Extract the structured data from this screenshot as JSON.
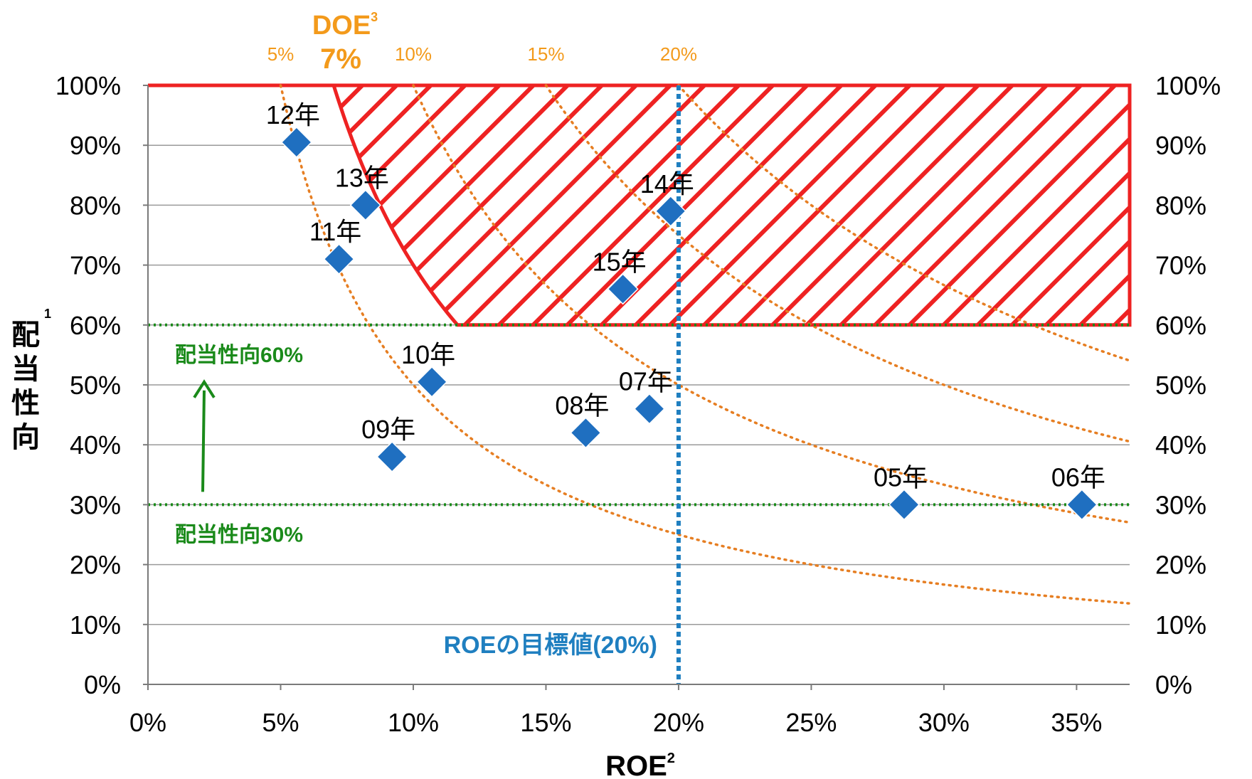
{
  "chart_data": {
    "type": "scatter",
    "xlabel": "ROE",
    "xlabel_sup": "2",
    "ylabel": "配当性向",
    "ylabel_sup": "1",
    "xlim": [
      0,
      37
    ],
    "ylim": [
      0,
      100
    ],
    "x_ticks": [
      "0%",
      "5%",
      "10%",
      "15%",
      "20%",
      "25%",
      "30%",
      "35%"
    ],
    "y_ticks": [
      "0%",
      "10%",
      "20%",
      "30%",
      "40%",
      "50%",
      "60%",
      "70%",
      "80%",
      "90%",
      "100%"
    ],
    "y_ticks_right": [
      "0%",
      "10%",
      "20%",
      "30%",
      "40%",
      "50%",
      "60%",
      "70%",
      "80%",
      "90%",
      "100%"
    ],
    "grid": true,
    "points": [
      {
        "label": "05年",
        "x": 28.5,
        "y": 30
      },
      {
        "label": "06年",
        "x": 35.2,
        "y": 30
      },
      {
        "label": "07年",
        "x": 18.9,
        "y": 46
      },
      {
        "label": "08年",
        "x": 16.5,
        "y": 42
      },
      {
        "label": "09年",
        "x": 9.2,
        "y": 38
      },
      {
        "label": "10年",
        "x": 10.7,
        "y": 50.5
      },
      {
        "label": "11年",
        "x": 7.2,
        "y": 71
      },
      {
        "label": "12年",
        "x": 5.6,
        "y": 90.5
      },
      {
        "label": "13年",
        "x": 8.2,
        "y": 80
      },
      {
        "label": "14年",
        "x": 19.7,
        "y": 79
      },
      {
        "label": "15年",
        "x": 17.9,
        "y": 66
      }
    ],
    "point_color": "#1f6fc0",
    "doe_title": "DOE",
    "doe_title_sup": "3",
    "doe_curves": [
      {
        "doe": 5,
        "label": "5%"
      },
      {
        "doe": 10,
        "label": "10%"
      },
      {
        "doe": 15,
        "label": "15%"
      },
      {
        "doe": 20,
        "label": "20%"
      }
    ],
    "doe_target": {
      "doe": 7,
      "label": "7%"
    },
    "doe_color": "#e67e22",
    "roe_target": {
      "x": 20,
      "label": "ROEの目標値(20%)"
    },
    "roe_target_color": "#1f7fc0",
    "payout_lines": [
      {
        "y": 60,
        "label": "配当性向60%"
      },
      {
        "y": 30,
        "label": "配当性向30%"
      }
    ],
    "payout_color": "#1a8a1a",
    "target_region_color": "#ee2222"
  }
}
